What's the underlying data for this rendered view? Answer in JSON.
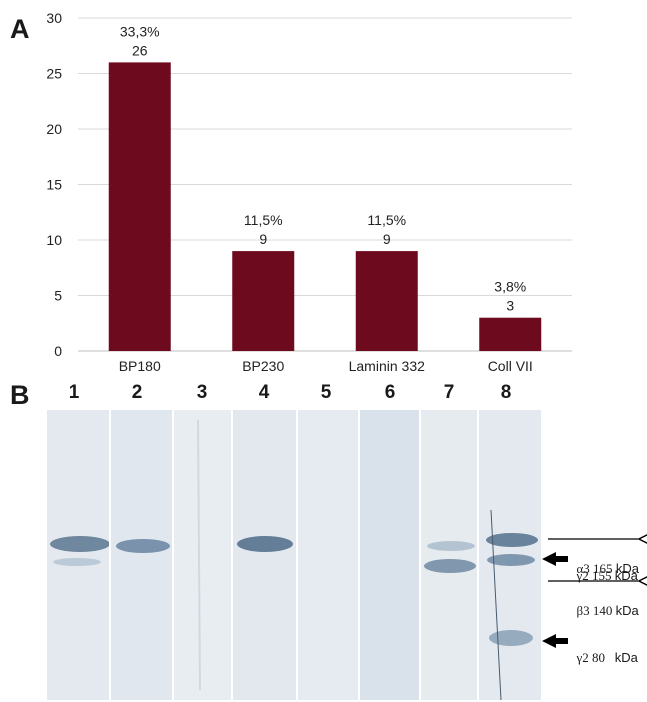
{
  "panel_a_label": "A",
  "panel_b_label": "B",
  "chart_data": {
    "type": "bar",
    "categories": [
      "BP180",
      "BP230",
      "Laminin 332",
      "Coll VII"
    ],
    "values": [
      26,
      9,
      9,
      3
    ],
    "percent_labels": [
      "33,3%",
      "11,5%",
      "11,5%",
      "3,8%"
    ],
    "value_labels": [
      "26",
      "9",
      "9",
      "3"
    ],
    "yticks": [
      "0",
      "5",
      "10",
      "15",
      "20",
      "25",
      "30"
    ],
    "ylim": [
      0,
      30
    ],
    "grid": true,
    "bar_color": "#6d0a1e"
  },
  "blot": {
    "lane_labels": [
      "1",
      "2",
      "3",
      "4",
      "5",
      "6",
      "7",
      "8"
    ],
    "markers": [
      {
        "label": "α3 165",
        "unit": "kDa",
        "arrow": "thin"
      },
      {
        "label": "γ2 155 ",
        "unit": "kDa",
        "arrow": "bold"
      },
      {
        "label": "β3 140",
        "unit": "kDa",
        "arrow": "thin"
      },
      {
        "label": "γ2 80   ",
        "unit": "kDa",
        "arrow": "bold"
      }
    ]
  }
}
